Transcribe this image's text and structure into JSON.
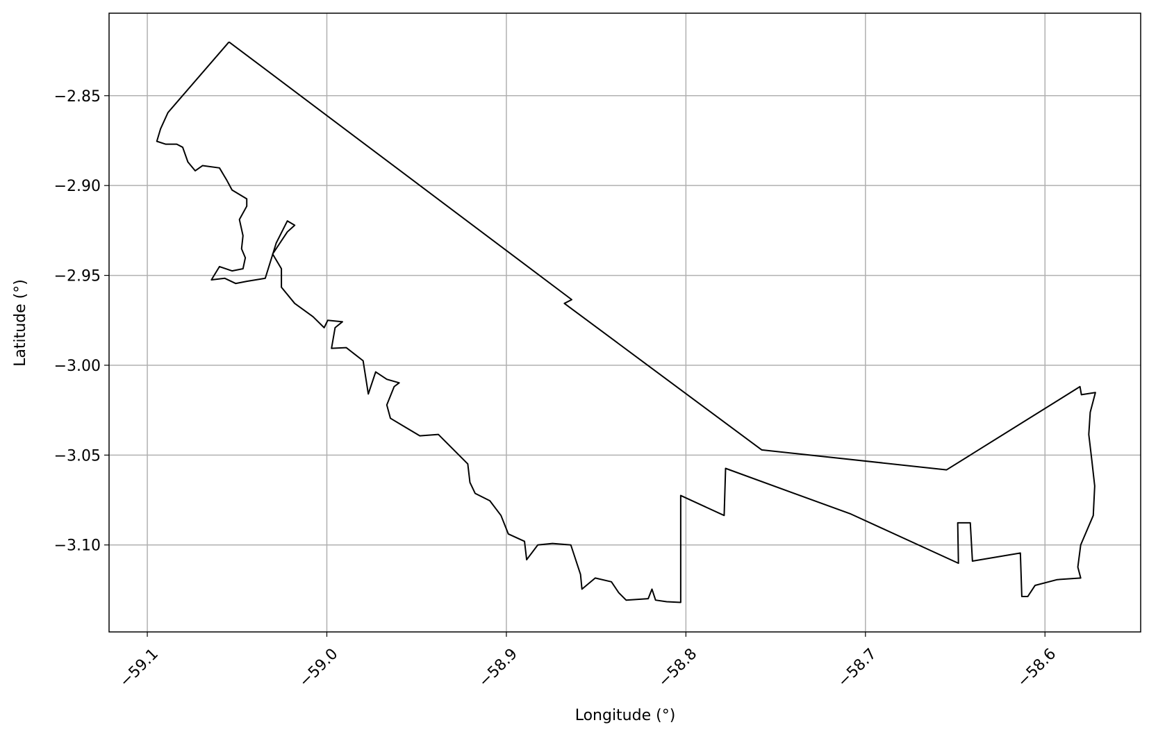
{
  "chart_data": {
    "type": "line",
    "color": "#000000",
    "grid": true,
    "xlabel": "Longitude (°)",
    "ylabel": "Latitude (°)",
    "xlim": [
      -59.1213,
      -58.5467
    ],
    "ylim": [
      -3.1484,
      -2.8041
    ],
    "xticks": [
      {
        "value": -59.1,
        "label": "−59.1"
      },
      {
        "value": -59.0,
        "label": "−59.0"
      },
      {
        "value": -58.9,
        "label": "−58.9"
      },
      {
        "value": -58.8,
        "label": "−58.8"
      },
      {
        "value": -58.7,
        "label": "−58.7"
      },
      {
        "value": -58.6,
        "label": "−58.6"
      }
    ],
    "yticks": [
      {
        "value": -2.85,
        "label": "−2.85"
      },
      {
        "value": -2.9,
        "label": "−2.90"
      },
      {
        "value": -2.95,
        "label": "−2.95"
      },
      {
        "value": -3.0,
        "label": "−3.00"
      },
      {
        "value": -3.05,
        "label": "−3.05"
      },
      {
        "value": -3.1,
        "label": "−3.10"
      }
    ],
    "x": [
      -59.0545,
      -58.8636,
      -58.8677,
      -58.7578,
      -58.6548,
      -58.5805,
      -58.5797,
      -58.5719,
      -58.5748,
      -58.5756,
      -58.5739,
      -58.5723,
      -58.5731,
      -58.5801,
      -58.5817,
      -58.5801,
      -58.5932,
      -58.6055,
      -58.6096,
      -58.6129,
      -58.6137,
      -58.6404,
      -58.6416,
      -58.6486,
      -58.6482,
      -58.7081,
      -58.7779,
      -58.7787,
      -58.8029,
      -58.8029,
      -58.8107,
      -58.8169,
      -58.8189,
      -58.821,
      -58.8333,
      -58.8374,
      -58.8415,
      -58.8505,
      -58.8579,
      -58.8587,
      -58.8641,
      -58.8743,
      -58.8825,
      -58.8887,
      -58.8899,
      -58.8989,
      -58.903,
      -58.9092,
      -58.9174,
      -58.9203,
      -58.9215,
      -58.9297,
      -58.9379,
      -58.9482,
      -58.9564,
      -58.9646,
      -58.9666,
      -58.9625,
      -58.9597,
      -58.9666,
      -58.9728,
      -58.9769,
      -58.9798,
      -58.9892,
      -58.9974,
      -58.9954,
      -58.9913,
      -58.9995,
      -59.0015,
      -59.0077,
      -59.0179,
      -59.0253,
      -59.0253,
      -59.0302,
      -59.022,
      -59.0179,
      -59.022,
      -59.0282,
      -59.0343,
      -59.0446,
      -59.0508,
      -59.0569,
      -59.0643,
      -59.0598,
      -59.0528,
      -59.0467,
      -59.0454,
      -59.0475,
      -59.0467,
      -59.0487,
      -59.0446,
      -59.0446,
      -59.0528,
      -59.0557,
      -59.0598,
      -59.0692,
      -59.0733,
      -59.0774,
      -59.0803,
      -59.0836,
      -59.0897,
      -59.0947,
      -59.0926,
      -59.0885,
      -59.0545
    ],
    "values": [
      -2.8201,
      -2.9635,
      -2.9656,
      -3.0471,
      -3.0582,
      -3.0119,
      -3.0164,
      -3.0152,
      -3.0262,
      -3.0385,
      -3.0529,
      -3.0672,
      -3.0836,
      -3.1,
      -3.1123,
      -3.1184,
      -3.1193,
      -3.1225,
      -3.1287,
      -3.1287,
      -3.1045,
      -3.109,
      -3.0877,
      -3.0877,
      -3.1102,
      -3.0828,
      -3.0574,
      -3.0836,
      -3.0725,
      -3.132,
      -3.1316,
      -3.1307,
      -3.1246,
      -3.1299,
      -3.1307,
      -3.1266,
      -3.1205,
      -3.1184,
      -3.1246,
      -3.1164,
      -3.1,
      -3.0992,
      -3.1,
      -3.1082,
      -3.098,
      -3.0939,
      -3.0836,
      -3.0754,
      -3.0713,
      -3.0652,
      -3.0549,
      -3.0467,
      -3.0385,
      -3.0393,
      -3.0344,
      -3.0295,
      -3.0221,
      -3.0119,
      -3.0098,
      -3.0078,
      -3.0037,
      -3.016,
      -2.9975,
      -2.9902,
      -2.9906,
      -2.9791,
      -2.9758,
      -2.975,
      -2.9791,
      -2.973,
      -2.9656,
      -2.9566,
      -2.9463,
      -2.9381,
      -2.9258,
      -2.9221,
      -2.9197,
      -2.932,
      -2.9516,
      -2.9533,
      -2.9545,
      -2.9516,
      -2.9525,
      -2.9451,
      -2.9475,
      -2.9463,
      -2.9402,
      -2.9352,
      -2.9279,
      -2.9189,
      -2.9115,
      -2.9074,
      -2.9025,
      -2.8971,
      -2.8902,
      -2.8889,
      -2.8918,
      -2.8869,
      -2.8787,
      -2.877,
      -2.877,
      -2.8754,
      -2.8684,
      -2.8594,
      -2.8201
    ]
  }
}
